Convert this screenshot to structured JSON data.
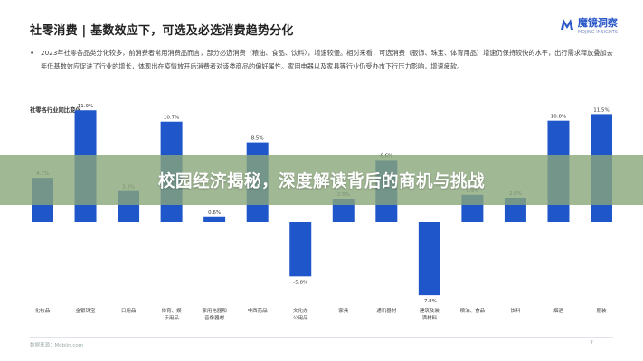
{
  "slide": {
    "title": "社零消费 | 基数效应下，可选及必选消费趋势分化",
    "logo_text": "魔镜洞察",
    "logo_sub": "MOJING INSIGHTS",
    "bullets": [
      "2023年社零各品类分化较多，前消费者常用消费品而言，部分必选消费（粮油、食品、饮料），增速较慢。相对来看，可选消费（服饰、珠宝、体育用品）增速仍保持较快的水平，出行需求释放叠加去年低基数效应促进了行业的增长，体现出在疫情放开后消费者对该类商品的偏好属性。家用电器以及家具等行业仍受办市下行压力影响，增速疲软。"
    ],
    "source": "数据来源：Mobjin.com",
    "page_number": "7"
  },
  "banner": {
    "text": "校园经济揭秘，深度解读背后的商机与挑战"
  },
  "chart_data": {
    "type": "bar",
    "title": "社零各行业同比变化",
    "categories": [
      "化妆品",
      "金银珠宝",
      "日用品",
      "体育、娱乐用品",
      "家用电器和音像器材",
      "中西药品",
      "文化办公用品",
      "家具",
      "通讯器材",
      "建筑及装潢材料",
      "粮油、食品",
      "饮料",
      "烟酒",
      "服装"
    ],
    "values": [
      4.7,
      11.9,
      3.3,
      10.7,
      0.6,
      8.5,
      -5.8,
      2.5,
      6.6,
      -7.8,
      2.9,
      2.6,
      10.8,
      11.5
    ],
    "value_labels": [
      "4.7%",
      "11.9%",
      "3.3%",
      "10.7%",
      "0.6%",
      "8.5%",
      "-5.8%",
      "2.5%",
      "6.6%",
      "-7.8%",
      "2.9%",
      "2.6%",
      "10.8%",
      "11.5%"
    ],
    "ylim": [
      -8,
      12
    ],
    "bar_color": "#1f56c9",
    "grid": false,
    "legend": "none"
  }
}
